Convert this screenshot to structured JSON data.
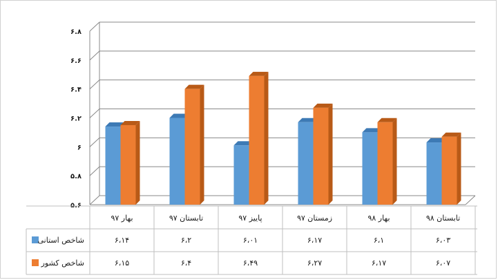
{
  "chart_data": {
    "type": "bar",
    "title": "",
    "xlabel": "",
    "ylabel": "",
    "ylim": [
      5.6,
      6.8
    ],
    "yticks": [
      "۵.۶",
      "۵.۸",
      "۶",
      "۶.۲",
      "۶.۴",
      "۶.۶",
      "۶.۸"
    ],
    "categories": [
      "بهار ۹۷",
      "تابستان ۹۷",
      "پاییز ۹۷",
      "زمستان ۹۷",
      "بهار ۹۸",
      "تابستان ۹۸"
    ],
    "series": [
      {
        "name": "شاخص استانی",
        "values": [
          6.14,
          6.2,
          6.01,
          6.17,
          6.1,
          6.03
        ],
        "labels": [
          "۶،۱۴",
          "۶،۲",
          "۶،۰۱",
          "۶،۱۷",
          "۶،۱",
          "۶،۰۳"
        ]
      },
      {
        "name": "شاخص کشور",
        "values": [
          6.15,
          6.4,
          6.49,
          6.27,
          6.17,
          6.07
        ],
        "labels": [
          "۶،۱۵",
          "۶،۴",
          "۶،۴۹",
          "۶،۲۷",
          "۶،۱۷",
          "۶،۰۷"
        ]
      }
    ],
    "colors": {
      "series_0": "#5b9bd5",
      "series_0_side": "#3d7ab5",
      "series_1": "#ed7d31",
      "series_1_side": "#b85a17",
      "grid": "#888888"
    },
    "grid": true,
    "legend": "data-table-left"
  }
}
